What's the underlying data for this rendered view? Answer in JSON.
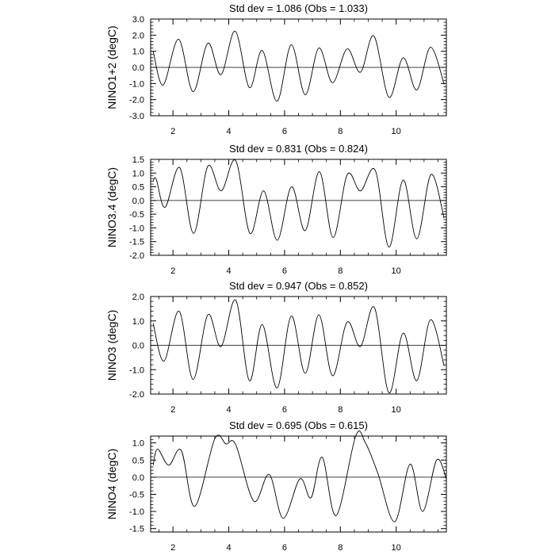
{
  "chart_data": [
    {
      "type": "line",
      "title": "Std dev = 1.086 (Obs = 1.033)",
      "ylabel": "NINO1+2 (degC)",
      "xlabel": "",
      "xlim": [
        1.2,
        11.8
      ],
      "ylim": [
        -3.0,
        3.0
      ],
      "xticks": [
        2,
        4,
        6,
        8,
        10
      ],
      "xtick_labels": [
        "2",
        "4",
        "6",
        "8",
        "10"
      ],
      "yticks": [
        -3.0,
        -2.0,
        -1.0,
        0.0,
        1.0,
        2.0,
        3.0
      ],
      "ytick_labels": [
        "-3.0",
        "-2.0",
        "-1.0",
        "0.0",
        "1.0",
        "2.0",
        "3.0"
      ],
      "ytick_minor_step": 0.2,
      "reference_line": 0.0,
      "series": [
        {
          "x": [
            1.29,
            1.65,
            2.2,
            2.72,
            3.25,
            3.72,
            4.23,
            4.74,
            5.2,
            5.73,
            6.24,
            6.74,
            7.23,
            7.72,
            8.24,
            8.72,
            9.2,
            9.74,
            10.25,
            10.74,
            11.23,
            11.72
          ],
          "y": [
            1.0,
            -1.1,
            1.75,
            -1.5,
            1.5,
            -0.45,
            2.25,
            -1.25,
            1.05,
            -2.1,
            1.4,
            -1.7,
            1.2,
            -0.95,
            1.15,
            -0.3,
            1.95,
            -1.85,
            0.6,
            -1.4,
            1.25,
            -1.05
          ]
        }
      ]
    },
    {
      "type": "line",
      "title": "Std dev = 0.831 (Obs = 0.824)",
      "ylabel": "NINO3.4 (degC)",
      "xlabel": "",
      "xlim": [
        1.2,
        11.8
      ],
      "ylim": [
        -2.0,
        1.5
      ],
      "xticks": [
        2,
        4,
        6,
        8,
        10
      ],
      "xtick_labels": [
        "2",
        "4",
        "6",
        "8",
        "10"
      ],
      "yticks": [
        -2.0,
        -1.5,
        -1.0,
        -0.5,
        0.0,
        0.5,
        1.0,
        1.5
      ],
      "ytick_labels": [
        "-2.0",
        "-1.5",
        "-1.0",
        "-0.5",
        "0.0",
        "0.5",
        "1.0",
        "1.5"
      ],
      "ytick_minor_step": 0.1,
      "reference_line": 0.0,
      "series": [
        {
          "x": [
            1.29,
            1.4,
            1.72,
            2.24,
            2.74,
            3.25,
            3.73,
            4.25,
            4.76,
            5.25,
            5.74,
            6.25,
            6.74,
            7.25,
            7.74,
            8.25,
            8.72,
            9.25,
            9.74,
            10.25,
            10.74,
            11.25,
            11.72
          ],
          "y": [
            0.7,
            0.78,
            -0.25,
            1.2,
            -1.2,
            1.25,
            0.35,
            1.45,
            -1.2,
            0.35,
            -1.45,
            0.5,
            -1.1,
            1.05,
            -1.35,
            0.95,
            0.35,
            1.1,
            -1.7,
            0.75,
            -1.4,
            0.95,
            -0.65
          ]
        }
      ]
    },
    {
      "type": "line",
      "title": "Std dev = 0.947 (Obs = 0.852)",
      "ylabel": "NINO3 (degC)",
      "xlabel": "",
      "xlim": [
        1.2,
        11.8
      ],
      "ylim": [
        -2.0,
        2.0
      ],
      "xticks": [
        2,
        4,
        6,
        8,
        10
      ],
      "xtick_labels": [
        "2",
        "4",
        "6",
        "8",
        "10"
      ],
      "yticks": [
        -2.0,
        -1.0,
        0.0,
        1.0,
        2.0
      ],
      "ytick_labels": [
        "-2.0",
        "-1.0",
        "0.0",
        "1.0",
        "2.0"
      ],
      "ytick_minor_step": 0.2,
      "reference_line": 0.0,
      "series": [
        {
          "x": [
            1.29,
            1.68,
            2.22,
            2.72,
            3.25,
            3.72,
            4.25,
            4.74,
            5.2,
            5.73,
            6.24,
            6.74,
            7.23,
            7.72,
            8.24,
            8.72,
            9.22,
            9.74,
            10.25,
            10.74,
            11.23,
            11.72
          ],
          "y": [
            0.9,
            -0.65,
            1.4,
            -1.4,
            1.25,
            -0.05,
            1.85,
            -1.45,
            0.85,
            -1.75,
            1.2,
            -1.15,
            1.25,
            -1.25,
            0.95,
            -0.05,
            1.55,
            -1.95,
            0.5,
            -1.45,
            1.05,
            -0.85
          ]
        }
      ]
    },
    {
      "type": "line",
      "title": "Std dev = 0.695 (Obs = 0.615)",
      "ylabel": "NINO4 (degC)",
      "xlabel": "",
      "xlim": [
        1.2,
        11.8
      ],
      "ylim": [
        -1.6,
        1.2
      ],
      "xticks": [
        2,
        4,
        6,
        8,
        10
      ],
      "xtick_labels": [
        "2",
        "4",
        "6",
        "8",
        "10"
      ],
      "yticks": [
        -1.5,
        -1.0,
        -0.5,
        0.0,
        0.5,
        1.0
      ],
      "ytick_labels": [
        "-1.5",
        "-1.0",
        "-0.5",
        "0.0",
        "0.5",
        "1.0"
      ],
      "ytick_minor_step": 0.1,
      "reference_line": 0.0,
      "series": [
        {
          "x": [
            1.29,
            1.45,
            1.85,
            2.3,
            2.78,
            3.5,
            3.9,
            4.25,
            4.9,
            5.45,
            5.95,
            6.55,
            6.95,
            7.35,
            7.85,
            8.55,
            8.9,
            9.35,
            9.95,
            10.5,
            10.95,
            11.45,
            11.8
          ],
          "y": [
            0.35,
            0.82,
            0.35,
            0.78,
            -0.85,
            1.12,
            0.97,
            0.95,
            -0.7,
            0.08,
            -1.2,
            -0.05,
            -0.6,
            0.58,
            -1.12,
            1.2,
            1.0,
            0.1,
            -1.3,
            0.38,
            -1.0,
            0.5,
            -0.05
          ]
        }
      ]
    }
  ]
}
